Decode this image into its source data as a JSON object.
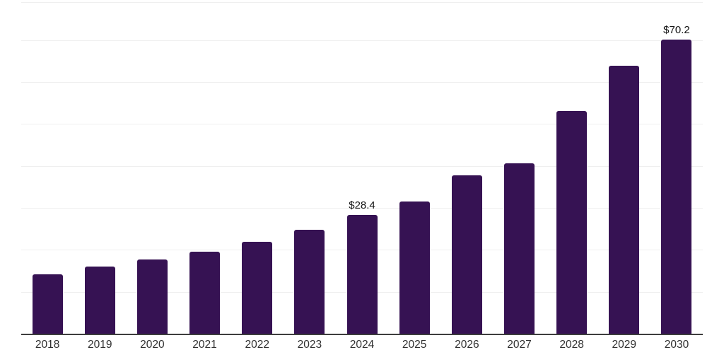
{
  "chart": {
    "background_color": "#ffffff",
    "bar_color": "#361253",
    "gridline_color": "#efefef",
    "axis_line_color": "#3d3d3d",
    "tick_label_color": "#303030",
    "value_label_color": "#141414"
  },
  "chart_data": {
    "type": "bar",
    "title": "",
    "xlabel": "",
    "ylabel": "",
    "categories": [
      "2018",
      "2019",
      "2020",
      "2021",
      "2022",
      "2023",
      "2024",
      "2025",
      "2026",
      "2027",
      "2028",
      "2029",
      "2030"
    ],
    "values": [
      14.3,
      16.2,
      17.8,
      19.8,
      22.1,
      25.0,
      28.4,
      31.7,
      37.9,
      40.8,
      53.2,
      64.1,
      70.2
    ],
    "value_labels": {
      "2024": "$28.4",
      "2030": "$70.2"
    },
    "currency_prefix": "$",
    "ylim": [
      0,
      79.2
    ],
    "gridline_interval": 10,
    "grid": "horizontal",
    "legend": "none",
    "bar_corner_radius": "rounded-top"
  }
}
